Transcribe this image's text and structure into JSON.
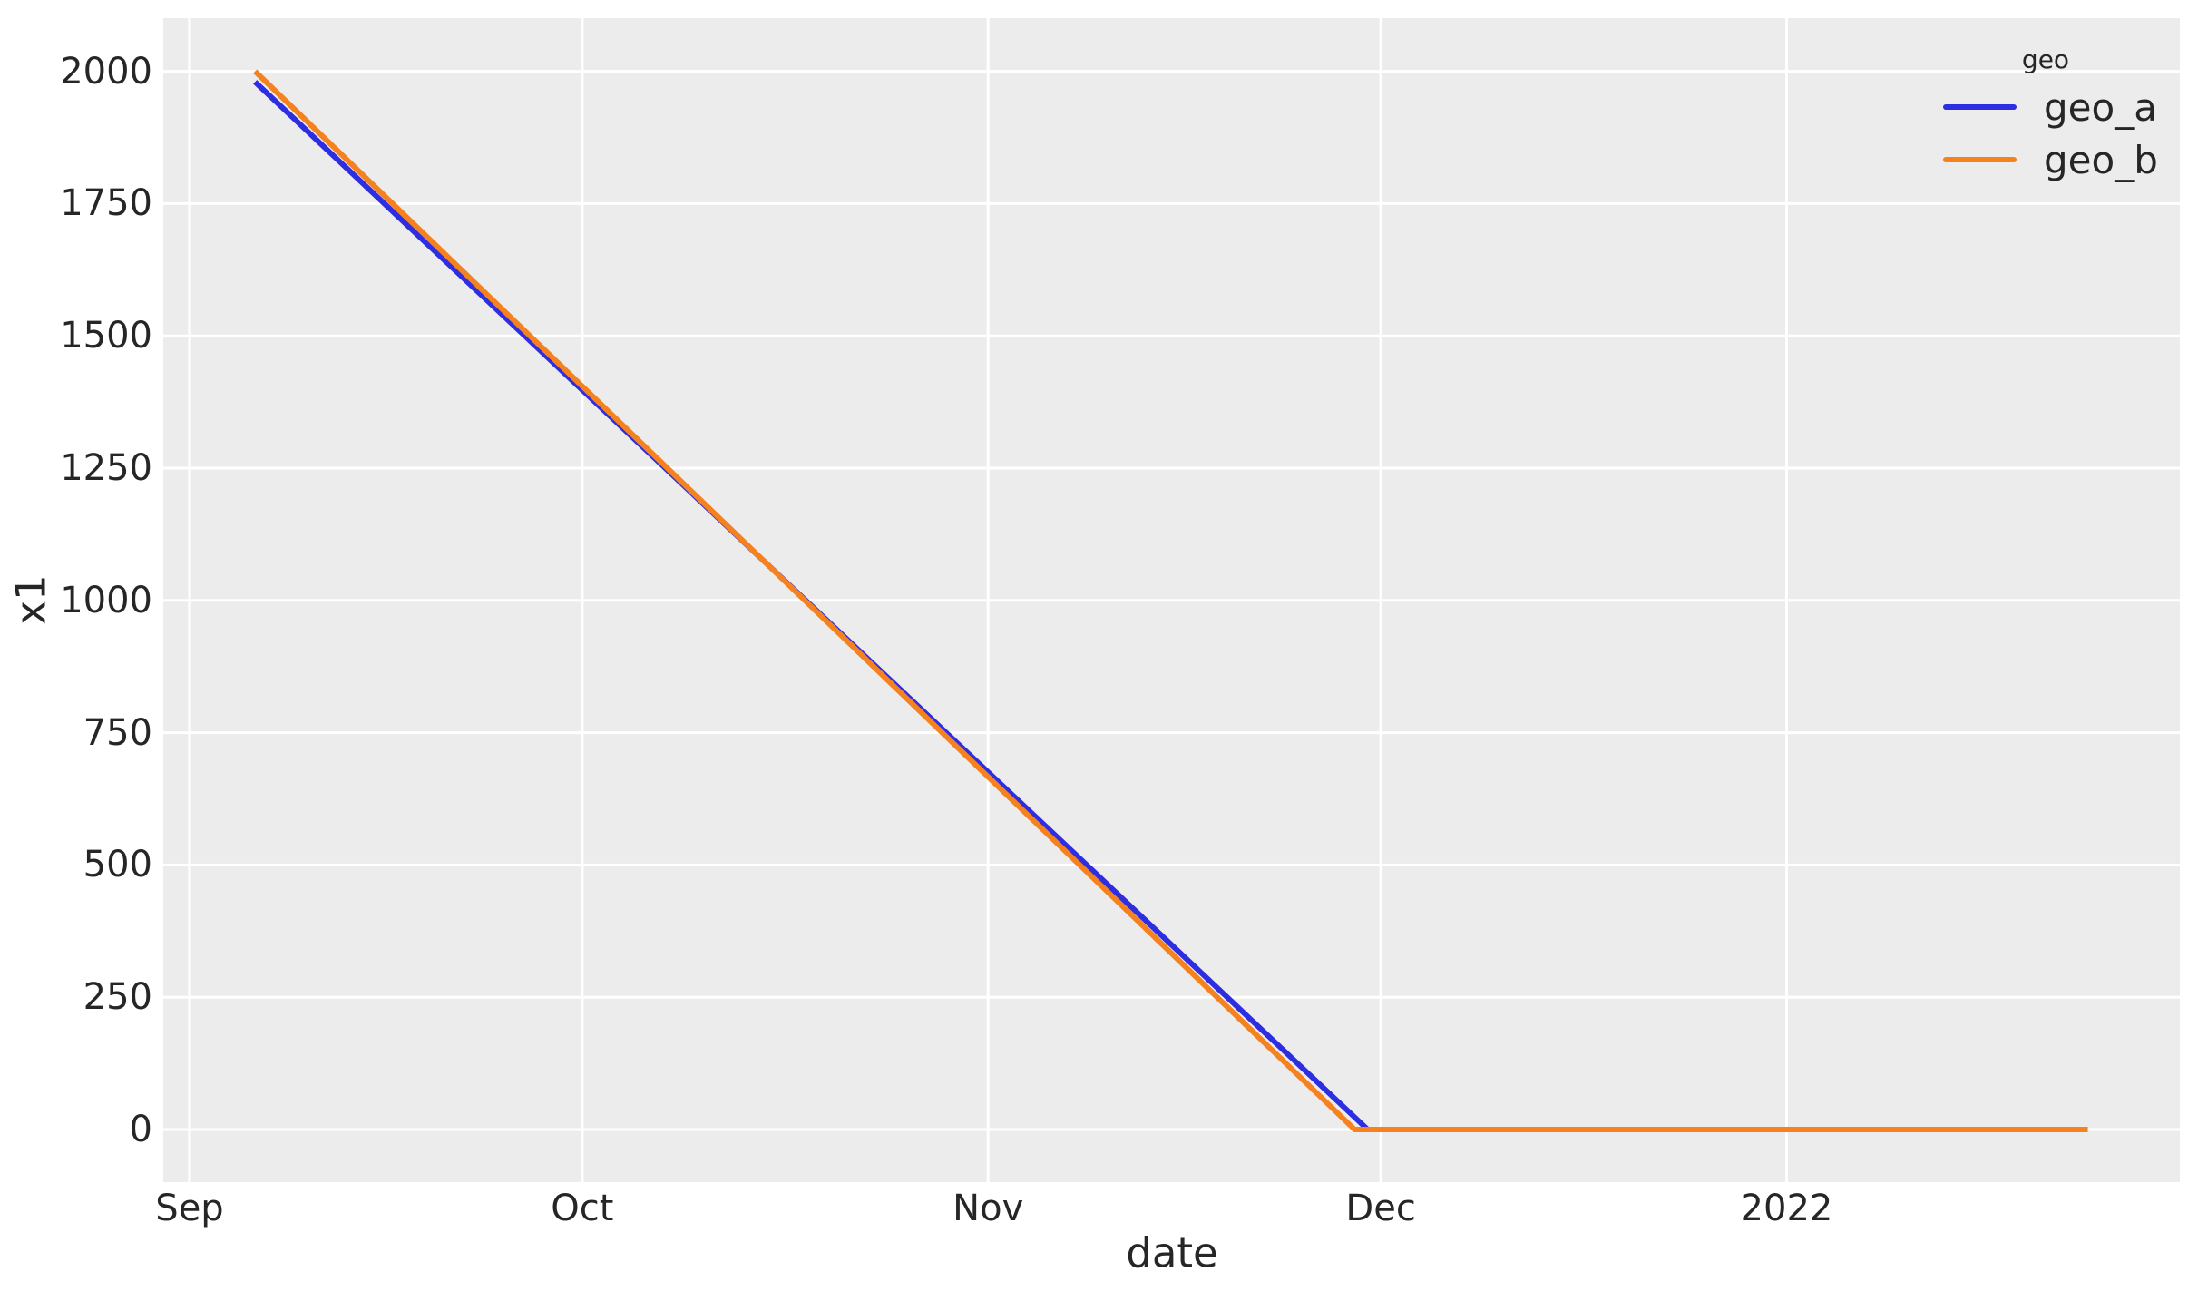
{
  "chart_data": {
    "type": "line",
    "title": "",
    "xlabel": "date",
    "ylabel": "x1",
    "x_axis": {
      "kind": "date",
      "range": [
        "2021-08-30",
        "2022-02-01"
      ],
      "ticks": [
        {
          "label": "Sep",
          "date": "2021-09-01"
        },
        {
          "label": "Oct",
          "date": "2021-10-01"
        },
        {
          "label": "Nov",
          "date": "2021-11-01"
        },
        {
          "label": "Dec",
          "date": "2021-12-01"
        },
        {
          "label": "2022",
          "date": "2022-01-01"
        }
      ]
    },
    "y_axis": {
      "ticks": [
        0,
        250,
        500,
        750,
        1000,
        1250,
        1500,
        1750,
        2000
      ],
      "ylim": [
        0,
        2135
      ]
    },
    "grid": {
      "on": true,
      "color": "#FFFFFF"
    },
    "panel_background": "#ECECEC",
    "legend": {
      "title": "geo",
      "position": "upper right inside plot",
      "entries": [
        {
          "label": "geo_a",
          "color": "#2D2DE1"
        },
        {
          "label": "geo_b",
          "color": "#F5811F"
        }
      ]
    },
    "series": [
      {
        "name": "geo_a",
        "color": "#2D2DE1",
        "points": [
          {
            "date": "2021-09-06",
            "value": 1980
          },
          {
            "date": "2021-11-30",
            "value": 0
          },
          {
            "date": "2022-01-24",
            "value": 0
          }
        ]
      },
      {
        "name": "geo_b",
        "color": "#F5811F",
        "points": [
          {
            "date": "2021-09-06",
            "value": 2000
          },
          {
            "date": "2021-11-29",
            "value": 0
          },
          {
            "date": "2022-01-24",
            "value": 0
          }
        ]
      }
    ]
  }
}
